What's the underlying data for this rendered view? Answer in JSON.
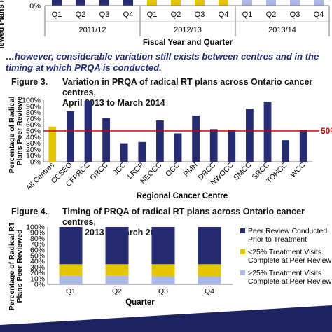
{
  "top_chart": {
    "ylabel": "Percentage of Peer Reviewed Plans P",
    "y_tick": "0%",
    "quarters": [
      "Q1",
      "Q2",
      "Q3",
      "Q4",
      "Q1",
      "Q2",
      "Q3",
      "Q4",
      "Q1",
      "Q2",
      "Q3",
      "Q4"
    ],
    "years": [
      "2011/12",
      "2012/13",
      "2013/14"
    ],
    "xlabel": "Fiscal Year and Quarter"
  },
  "note": "…however, considerable variation still exists between centres and in the timing at which PRQA is conducted.",
  "figure3": {
    "label": "Figure 3.",
    "title_line1": "Variation in PRQA of radical RT plans across Ontario cancer centres,",
    "title_line2": "April 2013 to March 2014",
    "ref_label": "50%"
  },
  "figure4": {
    "label": "Figure 4.",
    "title_line1": "Timing of PRQA of radical RT plans across Ontario cancer centres,",
    "title_line2": "April 2013 to March 2014"
  },
  "colors": {
    "navy": "#262b72",
    "yellow": "#e3c500",
    "lightblue": "#a9b8e6",
    "red": "#d40000",
    "band": "#1c2360"
  },
  "chart_data": [
    {
      "type": "bar",
      "title": "Variation in PRQA of radical RT plans across Ontario cancer centres, April 2013 to March 2014",
      "xlabel": "Regional Cancer Centre",
      "ylabel": "Percentage of Radical RT Plans Peer Reviewed",
      "categories": [
        "All Centres",
        "CCSEO",
        "CFPRCC",
        "GRCC",
        "JCC",
        "LRCP",
        "NEOCC",
        "OCC",
        "PMH",
        "DRCC",
        "NWOCC",
        "SMCC",
        "SRCC",
        "TOHCC",
        "WCC"
      ],
      "values": [
        57,
        82,
        99,
        71,
        30,
        32,
        67,
        46,
        75,
        53,
        52,
        86,
        97,
        35,
        52
      ],
      "ylim": [
        0,
        100
      ],
      "yticks": [
        "0%",
        "10%",
        "20%",
        "30%",
        "40%",
        "50%",
        "60%",
        "70%",
        "80%",
        "90%",
        "100%"
      ],
      "reference_line": 50
    },
    {
      "type": "bar",
      "stacked": true,
      "title": "Timing of PRQA of radical RT plans across Ontario cancer centres, April 2013 to March 2014",
      "xlabel": "Quarter",
      "ylabel": "Percentage of Radical RT Plans Peer Reviewed",
      "categories": [
        "Q1",
        "Q2",
        "Q3",
        "Q4"
      ],
      "ylim": [
        0,
        100
      ],
      "yticks": [
        "0%",
        "10%",
        "20%",
        "30%",
        "40%",
        "50%",
        "60%",
        "70%",
        "80%",
        "90%",
        "100%"
      ],
      "series": [
        {
          "name": ">25% Treatment Visits Complete at Peer Review",
          "values": [
            15,
            15,
            14,
            14
          ]
        },
        {
          "name": "<25% Treatment Visits Complete at Peer Review",
          "values": [
            20,
            20,
            21,
            21
          ]
        },
        {
          "name": "Peer Review Conducted Prior to Treatment",
          "values": [
            65,
            65,
            65,
            65
          ]
        }
      ],
      "legend": "right"
    }
  ]
}
